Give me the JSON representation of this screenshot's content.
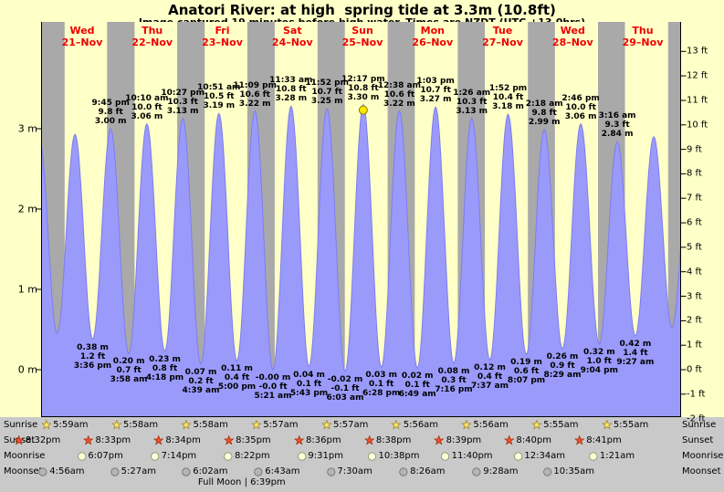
{
  "title": "Anatori River: at high  spring tide at 3.3m (10.8ft)",
  "subtitle": "Image captured 19 minutes before high water. Times are NZDT (UTC +13.0hrs)",
  "colors": {
    "page_bg": "#ffffc8",
    "day_band": "#ffffc8",
    "night_band": "#a9a9a9",
    "bottom_strip": "#c9c9c9",
    "tide_fill": "#9a9afb",
    "tide_stroke": "#7d7df0",
    "date_red": "#ee0000",
    "axis_black": "#000000",
    "marker_fill": "#ffe800",
    "marker_stroke": "#8a7a00",
    "sunrise_star_fill": "#ffe766",
    "sunrise_star_stroke": "#99812a",
    "sunset_star_fill": "#f4502a",
    "sunset_star_stroke": "#9c2c0e",
    "moonrise_fill": "#ffffd9",
    "moonrise_stroke": "#8f8f6f",
    "moonset_fill": "#b5b5b5",
    "moonset_stroke": "#6e6e6e"
  },
  "days": [
    {
      "name": "Wed",
      "date": "21–Nov"
    },
    {
      "name": "Thu",
      "date": "22–Nov"
    },
    {
      "name": "Fri",
      "date": "23–Nov"
    },
    {
      "name": "Sat",
      "date": "24–Nov"
    },
    {
      "name": "Sun",
      "date": "25–Nov"
    },
    {
      "name": "Mon",
      "date": "26–Nov"
    },
    {
      "name": "Tue",
      "date": "27–Nov"
    },
    {
      "name": "Wed",
      "date": "28–Nov"
    },
    {
      "name": "Thu",
      "date": "29–Nov"
    }
  ],
  "chart_data": {
    "type": "area",
    "title": "Anatori River: at high  spring tide at 3.3m (10.8ft)",
    "x_axis": "days Wed 21-Nov through Thu 29-Nov, NZDT",
    "y_axis": {
      "left_unit": "m",
      "right_unit": "ft",
      "left_ticks": [
        {
          "value": 3,
          "label": "3 m"
        },
        {
          "value": 2,
          "label": "2 m"
        },
        {
          "value": 1,
          "label": "1 m"
        },
        {
          "value": 0,
          "label": "0 m"
        }
      ],
      "right_ticks": [
        {
          "value": 13,
          "label": "13 ft"
        },
        {
          "value": 12,
          "label": "12 ft"
        },
        {
          "value": 11,
          "label": "11 ft"
        },
        {
          "value": 10,
          "label": "10 ft"
        },
        {
          "value": 9,
          "label": "9 ft"
        },
        {
          "value": 8,
          "label": "8 ft"
        },
        {
          "value": 7,
          "label": "7 ft"
        },
        {
          "value": 6,
          "label": "6 ft"
        },
        {
          "value": 5,
          "label": "5 ft"
        },
        {
          "value": 4,
          "label": "4 ft"
        },
        {
          "value": 3,
          "label": "3 ft"
        },
        {
          "value": 2,
          "label": "2 ft"
        },
        {
          "value": 1,
          "label": "1 ft"
        },
        {
          "value": 0,
          "label": "0 ft"
        },
        {
          "value": -1,
          "label": "-1 ft"
        },
        {
          "value": -2,
          "label": "-2 ft"
        }
      ]
    },
    "tide_events": [
      {
        "day": -1,
        "time": "21:20",
        "height_m": 2.88,
        "type": "high",
        "labeled": false
      },
      {
        "day": 0,
        "time": "03:25",
        "height_m": 0.45,
        "type": "low",
        "labeled": false
      },
      {
        "day": 0,
        "time": "09:33",
        "height_m": 2.93,
        "type": "high",
        "labeled": false
      },
      {
        "day": 0,
        "time": "15:36",
        "height_m": 0.38,
        "type": "low",
        "labeled": true,
        "lines": [
          "0.38 m",
          "1.2 ft",
          "3:36 pm"
        ]
      },
      {
        "day": 0,
        "time": "21:45",
        "height_m": 3.0,
        "type": "high",
        "labeled": true,
        "lines": [
          "9:45 pm",
          "9.8 ft",
          "3.00 m"
        ]
      },
      {
        "day": 1,
        "time": "03:58",
        "height_m": 0.2,
        "type": "low",
        "labeled": true,
        "lines": [
          "0.20 m",
          "0.7 ft",
          "3:58 am"
        ]
      },
      {
        "day": 1,
        "time": "10:10",
        "height_m": 3.06,
        "type": "high",
        "labeled": true,
        "lines": [
          "10:10 am",
          "10.0 ft",
          "3.06 m"
        ]
      },
      {
        "day": 1,
        "time": "16:18",
        "height_m": 0.23,
        "type": "low",
        "labeled": true,
        "lines": [
          "0.23 m",
          "0.8 ft",
          "4:18 pm"
        ]
      },
      {
        "day": 1,
        "time": "22:27",
        "height_m": 3.13,
        "type": "high",
        "labeled": true,
        "lines": [
          "10:27 pm",
          "10.3 ft",
          "3.13 m"
        ]
      },
      {
        "day": 2,
        "time": "04:39",
        "height_m": 0.07,
        "type": "low",
        "labeled": true,
        "lines": [
          "0.07 m",
          "0.2 ft",
          "4:39 am"
        ]
      },
      {
        "day": 2,
        "time": "10:51",
        "height_m": 3.19,
        "type": "high",
        "labeled": true,
        "lines": [
          "10:51 am",
          "10.5 ft",
          "3.19 m"
        ]
      },
      {
        "day": 2,
        "time": "17:00",
        "height_m": 0.11,
        "type": "low",
        "labeled": true,
        "lines": [
          "0.11 m",
          "0.4 ft",
          "5:00 pm"
        ]
      },
      {
        "day": 2,
        "time": "23:09",
        "height_m": 3.22,
        "type": "high",
        "labeled": true,
        "lines": [
          "11:09 pm",
          "10.6 ft",
          "3.22 m"
        ]
      },
      {
        "day": 3,
        "time": "05:21",
        "height_m": 0.0,
        "type": "low",
        "labeled": true,
        "lines": [
          "-0.00 m",
          "-0.0 ft",
          "5:21 am"
        ]
      },
      {
        "day": 3,
        "time": "11:33",
        "height_m": 3.28,
        "type": "high",
        "labeled": true,
        "lines": [
          "11:33 am",
          "10.8 ft",
          "3.28 m"
        ]
      },
      {
        "day": 3,
        "time": "17:43",
        "height_m": 0.04,
        "type": "low",
        "labeled": true,
        "lines": [
          "0.04 m",
          "0.1 ft",
          "5:43 pm"
        ]
      },
      {
        "day": 3,
        "time": "23:52",
        "height_m": 3.25,
        "type": "high",
        "labeled": true,
        "lines": [
          "11:52 pm",
          "10.7 ft",
          "3.25 m"
        ]
      },
      {
        "day": 4,
        "time": "06:03",
        "height_m": -0.02,
        "type": "low",
        "labeled": true,
        "lines": [
          "-0.02 m",
          "-0.1 ft",
          "6:03 am"
        ]
      },
      {
        "day": 4,
        "time": "12:17",
        "height_m": 3.3,
        "type": "high",
        "labeled": true,
        "marker": true,
        "lines": [
          "12:17 pm",
          "10.8 ft",
          "3.30 m"
        ]
      },
      {
        "day": 4,
        "time": "18:28",
        "height_m": 0.03,
        "type": "low",
        "labeled": true,
        "lines": [
          "0.03 m",
          "0.1 ft",
          "6:28 pm"
        ]
      },
      {
        "day": 5,
        "time": "00:38",
        "height_m": 3.22,
        "type": "high",
        "labeled": true,
        "lines": [
          "12:38 am",
          "10.6 ft",
          "3.22 m"
        ]
      },
      {
        "day": 5,
        "time": "06:49",
        "height_m": 0.02,
        "type": "low",
        "labeled": true,
        "lines": [
          "0.02 m",
          "0.1 ft",
          "6:49 am"
        ]
      },
      {
        "day": 5,
        "time": "13:03",
        "height_m": 3.27,
        "type": "high",
        "labeled": true,
        "lines": [
          "1:03 pm",
          "10.7 ft",
          "3.27 m"
        ]
      },
      {
        "day": 5,
        "time": "19:16",
        "height_m": 0.08,
        "type": "low",
        "labeled": true,
        "lines": [
          "0.08 m",
          "0.3 ft",
          "7:16 pm"
        ]
      },
      {
        "day": 6,
        "time": "01:26",
        "height_m": 3.13,
        "type": "high",
        "labeled": true,
        "lines": [
          "1:26 am",
          "10.3 ft",
          "3.13 m"
        ]
      },
      {
        "day": 6,
        "time": "07:37",
        "height_m": 0.12,
        "type": "low",
        "labeled": true,
        "lines": [
          "0.12 m",
          "0.4 ft",
          "7:37 am"
        ]
      },
      {
        "day": 6,
        "time": "13:52",
        "height_m": 3.18,
        "type": "high",
        "labeled": true,
        "lines": [
          "1:52 pm",
          "10.4 ft",
          "3.18 m"
        ]
      },
      {
        "day": 6,
        "time": "20:07",
        "height_m": 0.19,
        "type": "low",
        "labeled": true,
        "lines": [
          "0.19 m",
          "0.6 ft",
          "8:07 pm"
        ]
      },
      {
        "day": 7,
        "time": "02:18",
        "height_m": 2.99,
        "type": "high",
        "labeled": true,
        "lines": [
          "2:18 am",
          "9.8 ft",
          "2.99 m"
        ]
      },
      {
        "day": 7,
        "time": "08:29",
        "height_m": 0.26,
        "type": "low",
        "labeled": true,
        "lines": [
          "0.26 m",
          "0.9 ft",
          "8:29 am"
        ]
      },
      {
        "day": 7,
        "time": "14:46",
        "height_m": 3.06,
        "type": "high",
        "labeled": true,
        "lines": [
          "2:46 pm",
          "10.0 ft",
          "3.06 m"
        ]
      },
      {
        "day": 7,
        "time": "21:04",
        "height_m": 0.32,
        "type": "low",
        "labeled": true,
        "lines": [
          "0.32 m",
          "1.0 ft",
          "9:04 pm"
        ]
      },
      {
        "day": 8,
        "time": "03:16",
        "height_m": 2.84,
        "type": "high",
        "labeled": true,
        "lines": [
          "3:16 am",
          "9.3 ft",
          "2.84 m"
        ]
      },
      {
        "day": 8,
        "time": "09:27",
        "height_m": 0.42,
        "type": "low",
        "labeled": true,
        "lines": [
          "0.42 m",
          "1.4 ft",
          "9:27 am"
        ]
      },
      {
        "day": 8,
        "time": "15:47",
        "height_m": 2.9,
        "type": "high",
        "labeled": false
      },
      {
        "day": 8,
        "time": "22:00",
        "height_m": 0.52,
        "type": "low",
        "labeled": false
      },
      {
        "day": 9,
        "time": "04:15",
        "height_m": 2.75,
        "type": "high",
        "labeled": false
      }
    ]
  },
  "astro": {
    "rows": [
      {
        "id": "sunrise",
        "label": "Sunrise",
        "icon": "sunrise-star",
        "entries": [
          {
            "day": 0,
            "time": "05:59",
            "text": "5:59am"
          },
          {
            "day": 1,
            "time": "05:58",
            "text": "5:58am"
          },
          {
            "day": 2,
            "time": "05:58",
            "text": "5:58am"
          },
          {
            "day": 3,
            "time": "05:57",
            "text": "5:57am"
          },
          {
            "day": 4,
            "time": "05:57",
            "text": "5:57am"
          },
          {
            "day": 5,
            "time": "05:56",
            "text": "5:56am"
          },
          {
            "day": 6,
            "time": "05:56",
            "text": "5:56am"
          },
          {
            "day": 7,
            "time": "05:55",
            "text": "5:55am"
          },
          {
            "day": 8,
            "time": "05:55",
            "text": "5:55am"
          }
        ]
      },
      {
        "id": "sunset",
        "label": "Sunset",
        "icon": "sunset-star",
        "entries": [
          {
            "day": -1,
            "time": "20:32",
            "text": "8:32pm"
          },
          {
            "day": 0,
            "time": "20:33",
            "text": "8:33pm"
          },
          {
            "day": 1,
            "time": "20:34",
            "text": "8:34pm"
          },
          {
            "day": 2,
            "time": "20:35",
            "text": "8:35pm"
          },
          {
            "day": 3,
            "time": "20:36",
            "text": "8:36pm"
          },
          {
            "day": 4,
            "time": "20:38",
            "text": "8:38pm"
          },
          {
            "day": 5,
            "time": "20:39",
            "text": "8:39pm"
          },
          {
            "day": 6,
            "time": "20:40",
            "text": "8:40pm"
          },
          {
            "day": 7,
            "time": "20:41",
            "text": "8:41pm"
          },
          {
            "day": 8,
            "time": "20:42",
            "shown": false
          }
        ]
      },
      {
        "id": "moonrise",
        "label": "Moonrise",
        "icon": "moonrise-moon",
        "entries": [
          {
            "day": 0,
            "time": "18:07",
            "text": "6:07pm"
          },
          {
            "day": 1,
            "time": "19:14",
            "text": "7:14pm"
          },
          {
            "day": 2,
            "time": "20:22",
            "text": "8:22pm"
          },
          {
            "day": 3,
            "time": "21:31",
            "text": "9:31pm"
          },
          {
            "day": 4,
            "time": "22:38",
            "text": "10:38pm"
          },
          {
            "day": 5,
            "time": "23:40",
            "text": "11:40pm"
          },
          {
            "day": 7,
            "time": "00:34",
            "text": "12:34am"
          },
          {
            "day": 8,
            "time": "01:21",
            "text": "1:21am"
          }
        ]
      },
      {
        "id": "moonset",
        "label": "Moonset",
        "icon": "moonset-moon",
        "entries": [
          {
            "day": 0,
            "time": "04:56",
            "text": "4:56am"
          },
          {
            "day": 1,
            "time": "05:27",
            "text": "5:27am"
          },
          {
            "day": 2,
            "time": "06:02",
            "text": "6:02am"
          },
          {
            "day": 3,
            "time": "06:43",
            "text": "6:43am"
          },
          {
            "day": 4,
            "time": "07:30",
            "text": "7:30am"
          },
          {
            "day": 5,
            "time": "08:26",
            "text": "8:26am"
          },
          {
            "day": 6,
            "time": "09:28",
            "text": "9:28am"
          },
          {
            "day": 7,
            "time": "10:35",
            "text": "10:35am"
          }
        ]
      }
    ],
    "full_moon": {
      "day": 2,
      "time": "18:39",
      "text": "Full Moon | 6:39pm"
    }
  }
}
